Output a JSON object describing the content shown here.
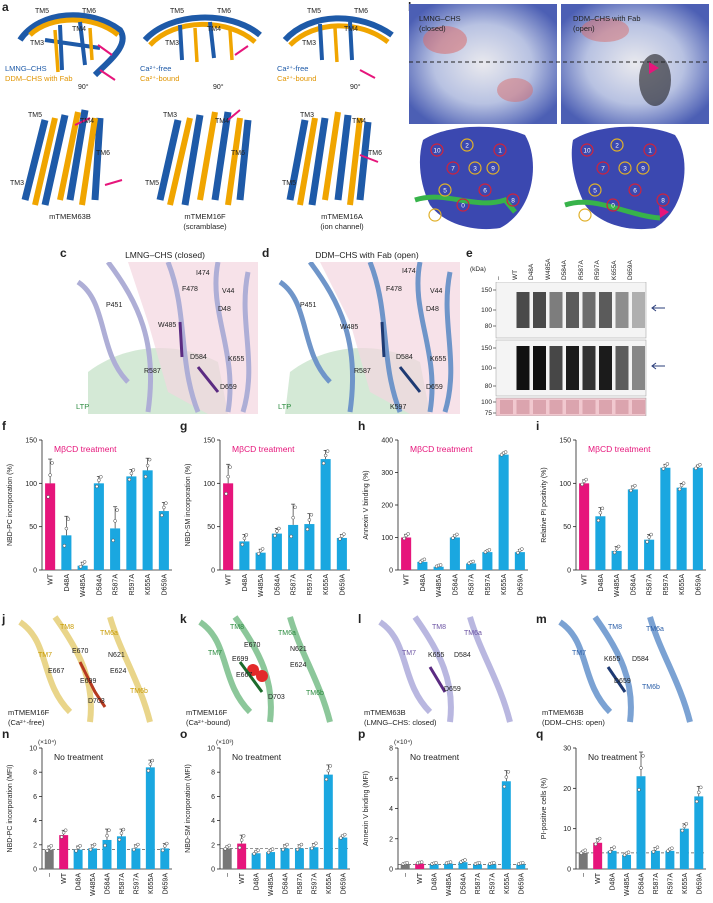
{
  "panels": {
    "a": {
      "label": "a",
      "columns": [
        {
          "legend": [
            "LMNG–CHS",
            "DDM–CHS with Fab"
          ],
          "name": "mTMEM63B",
          "sub": "",
          "rot": "90°",
          "top_tms": [
            "TM5",
            "TM6",
            "TM3",
            "TM4"
          ],
          "bottom_tms": [
            "TM5",
            "TM4",
            "TM6",
            "TM3"
          ]
        },
        {
          "legend": [
            "Ca²⁺-free",
            "Ca²⁺-bound"
          ],
          "name": "mTMEM16F",
          "sub": "(scramblase)",
          "rot": "90°",
          "top_tms": [
            "TM5",
            "TM6",
            "TM3",
            "TM4"
          ],
          "bottom_tms": [
            "TM3",
            "TM4",
            "TM6",
            "TM5"
          ]
        },
        {
          "legend": [
            "Ca²⁺-free",
            "Ca²⁺-bound"
          ],
          "name": "mTMEM16A",
          "sub": "(ion channel)",
          "rot": "90°",
          "top_tms": [
            "TM5",
            "TM6",
            "TM3",
            "TM4"
          ],
          "bottom_tms": [
            "TM3",
            "TM4",
            "TM6",
            "TM5"
          ]
        }
      ]
    },
    "b": {
      "label": "b",
      "left": [
        "LMNG–CHS",
        "(closed)"
      ],
      "right": [
        "DDM–CHS with Fab",
        "(open)"
      ],
      "numbers_left": [
        "10",
        "2",
        "1",
        "3",
        "7",
        "9",
        "6",
        "5",
        "0",
        "4",
        "8"
      ],
      "numbers_right": [
        "10",
        "2",
        "1",
        "3",
        "7",
        "9",
        "6",
        "5",
        "0",
        "4",
        "8"
      ]
    },
    "c": {
      "label": "c",
      "title": "LMNG–CHS (closed)",
      "residues": [
        "I474",
        "V44",
        "F478",
        "P451",
        "D48",
        "W485",
        "D584",
        "K655",
        "R587",
        "D659"
      ],
      "ltp": "LTP"
    },
    "d": {
      "label": "d",
      "title": "DDM–CHS with Fab (open)",
      "residues": [
        "I474",
        "V44",
        "F478",
        "P451",
        "D48",
        "W485",
        "D584",
        "K655",
        "R587",
        "D659",
        "K597"
      ],
      "ltp": "LTP"
    },
    "e": {
      "label": "e",
      "unit": "(kDa)",
      "lanes": [
        "–",
        "WT",
        "D48A",
        "W485A",
        "D584A",
        "R587A",
        "R597A",
        "K655A",
        "D659A"
      ],
      "ticks_top": [
        "150",
        "100",
        "80"
      ],
      "ticks_mid": [
        "150",
        "100",
        "80"
      ],
      "ticks_bot": [
        "100",
        "75"
      ]
    },
    "j": {
      "label": "j",
      "name": "mTMEM16F",
      "sub": "(Ca²⁺-free)",
      "labels": [
        "TM8",
        "TM6a",
        "TM7",
        "E670",
        "N621",
        "E667",
        "E699",
        "E624",
        "D703",
        "TM6b"
      ]
    },
    "k": {
      "label": "k",
      "name": "mTMEM16F",
      "sub": "(Ca²⁺-bound)",
      "labels": [
        "TM8",
        "TM6a",
        "TM7",
        "E670",
        "N621",
        "E699",
        "E624",
        "E667",
        "D703",
        "TM6b"
      ]
    },
    "l": {
      "label": "l",
      "name": "mTMEM63B",
      "sub": "(LMNG–CHS: closed)",
      "labels": [
        "TM8",
        "TM6a",
        "TM7",
        "K655",
        "D584",
        "D659"
      ]
    },
    "m": {
      "label": "m",
      "name": "mTMEM63B",
      "sub": "(DDM–CHS: open)",
      "labels": [
        "TM8",
        "TM6a",
        "TM7",
        "K655",
        "D584",
        "D659",
        "TM6b"
      ]
    }
  },
  "chart_data": [
    {
      "id": "f",
      "label": "f",
      "type": "bar",
      "title": "MβCD treatment",
      "xlabel": "",
      "ylabel": "NBD-PC incorporation (%)",
      "ylim": [
        0,
        150
      ],
      "yticks": [
        "0",
        "50",
        "100",
        "150"
      ],
      "multiplier": "",
      "categories": [
        "WT",
        "D48A",
        "W485A",
        "D584A",
        "R587A",
        "R597A",
        "K655A",
        "D659A"
      ],
      "values": [
        100,
        40,
        5,
        100,
        48,
        108,
        115,
        68
      ],
      "errors": [
        28,
        22,
        4,
        8,
        25,
        8,
        14,
        10
      ],
      "colors": [
        "#e6157b",
        "#1aa7e0",
        "#1aa7e0",
        "#1aa7e0",
        "#1aa7e0",
        "#1aa7e0",
        "#1aa7e0",
        "#1aa7e0"
      ],
      "dashed": null
    },
    {
      "id": "g",
      "label": "g",
      "type": "bar",
      "title": "MβCD treatment",
      "xlabel": "",
      "ylabel": "NBD-SM incorporation (%)",
      "ylim": [
        0,
        150
      ],
      "yticks": [
        "0",
        "50",
        "100",
        "150"
      ],
      "multiplier": "",
      "categories": [
        "WT",
        "D48A",
        "W485A",
        "D584A",
        "R587A",
        "R597A",
        "K655A",
        "D659A"
      ],
      "values": [
        100,
        33,
        20,
        42,
        52,
        53,
        128,
        37
      ],
      "errors": [
        22,
        8,
        4,
        6,
        24,
        12,
        10,
        4
      ],
      "colors": [
        "#e6157b",
        "#1aa7e0",
        "#1aa7e0",
        "#1aa7e0",
        "#1aa7e0",
        "#1aa7e0",
        "#1aa7e0",
        "#1aa7e0"
      ],
      "dashed": null
    },
    {
      "id": "h",
      "label": "h",
      "type": "bar",
      "title": "MβCD treatment",
      "xlabel": "",
      "ylabel": "Annexin V binding (%)",
      "ylim": [
        0,
        400
      ],
      "yticks": [
        "0",
        "100",
        "200",
        "300",
        "400"
      ],
      "multiplier": "",
      "categories": [
        "WT",
        "D48A",
        "W485A",
        "D584A",
        "R587A",
        "R597A",
        "K655A",
        "D659A"
      ],
      "values": [
        100,
        25,
        10,
        100,
        20,
        55,
        355,
        55
      ],
      "errors": [
        10,
        6,
        3,
        8,
        4,
        5,
        6,
        8
      ],
      "colors": [
        "#e6157b",
        "#1aa7e0",
        "#1aa7e0",
        "#1aa7e0",
        "#1aa7e0",
        "#1aa7e0",
        "#1aa7e0",
        "#1aa7e0"
      ],
      "dashed": null
    },
    {
      "id": "i",
      "label": "i",
      "type": "bar",
      "title": "MβCD treatment",
      "xlabel": "",
      "ylabel": "Relative PI positivity (%)",
      "ylim": [
        0,
        150
      ],
      "yticks": [
        "0",
        "50",
        "100",
        "150"
      ],
      "multiplier": "",
      "categories": [
        "WT",
        "D48A",
        "W485A",
        "D584A",
        "R587A",
        "R597A",
        "K655A",
        "D659A"
      ],
      "values": [
        100,
        62,
        22,
        93,
        35,
        118,
        95,
        118
      ],
      "errors": [
        4,
        10,
        5,
        4,
        6,
        4,
        5,
        3
      ],
      "colors": [
        "#e6157b",
        "#1aa7e0",
        "#1aa7e0",
        "#1aa7e0",
        "#1aa7e0",
        "#1aa7e0",
        "#1aa7e0",
        "#1aa7e0"
      ],
      "dashed": null
    },
    {
      "id": "n",
      "label": "n",
      "type": "bar",
      "title": "No treatment",
      "xlabel": "",
      "ylabel": "NBD-PC incorporation (MFI)",
      "ylim": [
        0,
        10
      ],
      "yticks": [
        "0",
        "2",
        "4",
        "6",
        "8",
        "10"
      ],
      "multiplier": "(×10⁴)",
      "categories": [
        "–",
        "WT",
        "D48A",
        "W485A",
        "D584A",
        "R587A",
        "R597A",
        "K655A",
        "D659A"
      ],
      "values": [
        1.6,
        2.8,
        1.6,
        1.7,
        2.4,
        2.7,
        1.7,
        8.4,
        1.7
      ],
      "errors": [
        0.3,
        0.4,
        0.3,
        0.3,
        0.9,
        0.6,
        0.3,
        0.6,
        0.4
      ],
      "colors": [
        "#777777",
        "#e6157b",
        "#1aa7e0",
        "#1aa7e0",
        "#1aa7e0",
        "#1aa7e0",
        "#1aa7e0",
        "#1aa7e0",
        "#1aa7e0"
      ],
      "dashed": 1.6
    },
    {
      "id": "o",
      "label": "o",
      "type": "bar",
      "title": "No treatment",
      "xlabel": "",
      "ylabel": "NBD-SM incorporation (MFI)",
      "ylim": [
        0,
        10
      ],
      "yticks": [
        "0",
        "2",
        "4",
        "6",
        "8",
        "10"
      ],
      "multiplier": "(×10³)",
      "categories": [
        "–",
        "WT",
        "D48A",
        "W485A",
        "D584A",
        "R587A",
        "R597A",
        "K655A",
        "D659A"
      ],
      "values": [
        1.7,
        2.1,
        1.3,
        1.4,
        1.7,
        1.7,
        1.8,
        7.8,
        2.6
      ],
      "errors": [
        0.2,
        0.7,
        0.2,
        0.2,
        0.3,
        0.3,
        0.3,
        0.8,
        0.2
      ],
      "colors": [
        "#777777",
        "#e6157b",
        "#1aa7e0",
        "#1aa7e0",
        "#1aa7e0",
        "#1aa7e0",
        "#1aa7e0",
        "#1aa7e0",
        "#1aa7e0"
      ],
      "dashed": 1.7
    },
    {
      "id": "p",
      "label": "p",
      "type": "bar",
      "title": "No treatment",
      "xlabel": "",
      "ylabel": "Annexin V binding (MFI)",
      "ylim": [
        0,
        8
      ],
      "yticks": [
        "0",
        "2",
        "4",
        "6",
        "8"
      ],
      "multiplier": "(×10⁴)",
      "categories": [
        "–",
        "WT",
        "D48A",
        "W485A",
        "D584A",
        "R587A",
        "R597A",
        "K655A",
        "D659A"
      ],
      "values": [
        0.3,
        0.35,
        0.3,
        0.35,
        0.45,
        0.3,
        0.3,
        5.8,
        0.3
      ],
      "errors": [
        0.05,
        0.05,
        0.05,
        0.05,
        0.1,
        0.05,
        0.05,
        0.7,
        0.05
      ],
      "colors": [
        "#777777",
        "#e6157b",
        "#1aa7e0",
        "#1aa7e0",
        "#1aa7e0",
        "#1aa7e0",
        "#1aa7e0",
        "#1aa7e0",
        "#1aa7e0"
      ],
      "dashed": 0.3
    },
    {
      "id": "q",
      "label": "q",
      "type": "bar",
      "title": "No treatment",
      "xlabel": "",
      "ylabel": "PI-positive cells (%)",
      "ylim": [
        0,
        30
      ],
      "yticks": [
        "0",
        "10",
        "20",
        "30"
      ],
      "multiplier": "",
      "categories": [
        "–",
        "WT",
        "D48A",
        "W485A",
        "D584A",
        "R587A",
        "R597A",
        "K655A",
        "D659A"
      ],
      "values": [
        4,
        6.5,
        4.5,
        3.5,
        23,
        4.5,
        4.5,
        10,
        18
      ],
      "errors": [
        0.5,
        1.0,
        0.8,
        0.5,
        6,
        0.8,
        0.5,
        1.2,
        2.5
      ],
      "colors": [
        "#777777",
        "#e6157b",
        "#1aa7e0",
        "#1aa7e0",
        "#1aa7e0",
        "#1aa7e0",
        "#1aa7e0",
        "#1aa7e0",
        "#1aa7e0"
      ],
      "dashed": 4
    }
  ]
}
